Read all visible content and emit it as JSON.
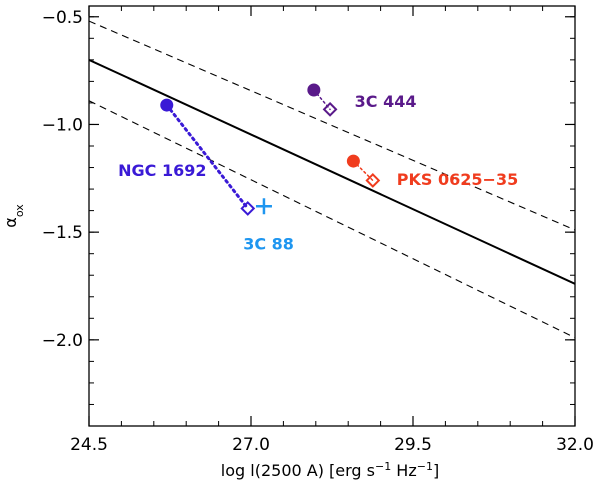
{
  "chart_data": {
    "type": "scatter",
    "title": "",
    "xlabel": "log l(2500 A) [erg s",
    "xlabel_sup1": "−1",
    "xlabel_mid": " Hz",
    "xlabel_sup2": "−1",
    "xlabel_end": "]",
    "ylabel": "α",
    "ylabel_sub": "ox",
    "xlim": [
      24.5,
      32.0
    ],
    "ylim": [
      -2.4,
      -0.45
    ],
    "xticks": [
      24.5,
      27.0,
      29.5,
      32.0
    ],
    "xtick_labels": [
      "24.5",
      "27.0",
      "29.5",
      "32.0"
    ],
    "yticks": [
      -2.0,
      -1.5,
      -1.0,
      -0.5
    ],
    "ytick_labels": [
      "−2.0",
      "−1.5",
      "−1.0",
      "−0.5"
    ],
    "grid": false,
    "relations": [
      {
        "style": "solid",
        "x": [
          24.5,
          32.0
        ],
        "y": [
          -0.7,
          -1.74
        ]
      },
      {
        "style": "dashed",
        "x": [
          24.5,
          32.0
        ],
        "y": [
          -0.52,
          -1.49
        ]
      },
      {
        "style": "dashed",
        "x": [
          24.5,
          32.0
        ],
        "y": [
          -0.89,
          -1.99
        ]
      }
    ],
    "objects": [
      {
        "label": "3C 444",
        "color": "#5a1a8a",
        "filled": {
          "x": 27.97,
          "y": -0.84
        },
        "open": {
          "x": 28.22,
          "y": -0.93
        },
        "label_pos": {
          "x": 28.6,
          "y": -0.92
        }
      },
      {
        "label": "PKS 0625−35",
        "color": "#f03c1e",
        "filled": {
          "x": 28.58,
          "y": -1.17
        },
        "open": {
          "x": 28.88,
          "y": -1.26
        },
        "label_pos": {
          "x": 29.25,
          "y": -1.28
        }
      },
      {
        "label": "NGC 1692",
        "color": "#3a1ad6",
        "filled": {
          "x": 25.7,
          "y": -0.91
        },
        "open": {
          "x": 26.95,
          "y": -1.39
        },
        "label_pos": {
          "x": 24.95,
          "y": -1.24
        },
        "connector": "dotted"
      },
      {
        "label": "3C 88",
        "color": "#1e96f0",
        "cross": {
          "x": 27.2,
          "y": -1.38
        },
        "label_pos": {
          "x": 26.88,
          "y": -1.58
        }
      }
    ]
  }
}
